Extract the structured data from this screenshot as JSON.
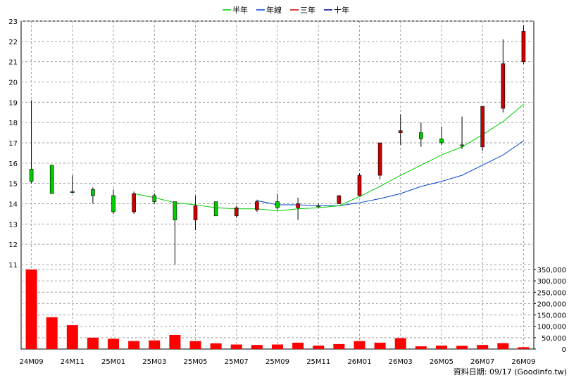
{
  "chart_data": {
    "type": "candlestick",
    "legend": [
      {
        "label": "半年",
        "color": "#00cc00"
      },
      {
        "label": "年線",
        "color": "#0044cc"
      },
      {
        "label": "三年",
        "color": "#cc0000"
      },
      {
        "label": "十年",
        "color": "#000080"
      }
    ],
    "months": [
      "24M09",
      "24M10",
      "24M11",
      "24M12",
      "25M01",
      "25M02",
      "25M03",
      "25M04",
      "25M05",
      "25M06",
      "25M07",
      "25M08",
      "25M09",
      "25M10",
      "25M11",
      "25M12",
      "26M01",
      "26M02",
      "26M03",
      "26M04",
      "26M05",
      "26M06",
      "26M07",
      "26M08",
      "26M09"
    ],
    "x_tick_labels": [
      "24M09",
      "24M11",
      "25M01",
      "25M03",
      "25M05",
      "25M07",
      "25M09",
      "25M11",
      "26M01",
      "26M03",
      "26M05",
      "26M07",
      "26M09"
    ],
    "candles": [
      {
        "open": 15.1,
        "high": 19.1,
        "low": 15.0,
        "close": 15.7
      },
      {
        "open": 14.5,
        "high": 15.9,
        "low": 14.5,
        "close": 15.9
      },
      {
        "open": 14.6,
        "high": 15.4,
        "low": 14.5,
        "close": 14.6
      },
      {
        "open": 14.4,
        "high": 14.8,
        "low": 14.0,
        "close": 14.7
      },
      {
        "open": 13.6,
        "high": 14.7,
        "low": 13.5,
        "close": 14.4
      },
      {
        "open": 14.5,
        "high": 14.6,
        "low": 13.5,
        "close": 13.6
      },
      {
        "open": 14.1,
        "high": 14.5,
        "low": 14.0,
        "close": 14.4
      },
      {
        "open": 13.2,
        "high": 14.1,
        "low": 11.0,
        "close": 14.1
      },
      {
        "open": 13.9,
        "high": 14.4,
        "low": 12.7,
        "close": 13.2
      },
      {
        "open": 13.4,
        "high": 14.1,
        "low": 13.4,
        "close": 14.1
      },
      {
        "open": 13.8,
        "high": 13.9,
        "low": 13.3,
        "close": 13.4
      },
      {
        "open": 14.1,
        "high": 14.2,
        "low": 13.6,
        "close": 13.7
      },
      {
        "open": 13.8,
        "high": 14.5,
        "low": 13.7,
        "close": 14.1
      },
      {
        "open": 14.0,
        "high": 14.3,
        "low": 13.2,
        "close": 13.8
      },
      {
        "open": 13.9,
        "high": 14.0,
        "low": 13.8,
        "close": 13.9
      },
      {
        "open": 14.4,
        "high": 14.4,
        "low": 14.0,
        "close": 14.0
      },
      {
        "open": 15.4,
        "high": 15.5,
        "low": 14.4,
        "close": 14.4
      },
      {
        "open": 17.0,
        "high": 17.0,
        "low": 15.2,
        "close": 15.4
      },
      {
        "open": 17.6,
        "high": 18.4,
        "low": 16.9,
        "close": 17.5
      },
      {
        "open": 17.2,
        "high": 18.0,
        "low": 16.8,
        "close": 17.5
      },
      {
        "open": 17.0,
        "high": 17.8,
        "low": 16.9,
        "close": 17.2
      },
      {
        "open": 16.9,
        "high": 18.3,
        "low": 16.7,
        "close": 16.9
      },
      {
        "open": 18.8,
        "high": 18.8,
        "low": 16.6,
        "close": 16.8
      },
      {
        "open": 20.9,
        "high": 22.1,
        "low": 18.5,
        "close": 18.7
      },
      {
        "open": 22.5,
        "high": 22.8,
        "low": 20.9,
        "close": 21.0
      }
    ],
    "half_year_ma": [
      null,
      null,
      null,
      null,
      null,
      14.5,
      14.3,
      14.05,
      13.95,
      13.8,
      13.75,
      13.75,
      13.65,
      13.75,
      13.8,
      13.9,
      14.35,
      14.85,
      15.4,
      15.9,
      16.4,
      16.8,
      17.4,
      18.05,
      18.9
    ],
    "annual_ma": [
      null,
      null,
      null,
      null,
      null,
      null,
      null,
      null,
      null,
      null,
      null,
      14.15,
      13.95,
      13.95,
      13.9,
      13.9,
      14.05,
      14.25,
      14.5,
      14.85,
      15.1,
      15.4,
      15.9,
      16.4,
      17.1
    ],
    "volume": [
      350000,
      140000,
      105000,
      50000,
      45000,
      35000,
      38000,
      62000,
      35000,
      25000,
      20000,
      18000,
      20000,
      28000,
      15000,
      22000,
      35000,
      28000,
      48000,
      12000,
      15000,
      14000,
      18000,
      26000,
      8000
    ],
    "price_ylim": [
      11,
      23
    ],
    "price_ticks": [
      11,
      12,
      13,
      14,
      15,
      16,
      17,
      18,
      19,
      20,
      21,
      22,
      23
    ],
    "volume_ylim": [
      0,
      350000
    ],
    "volume_ticks": [
      "0",
      "50,000",
      "100,000",
      "150,000",
      "200,000",
      "250,000",
      "300,000",
      "350,000"
    ],
    "grid": true
  },
  "source_text": "資料日期: 09/17  (Goodinfo.tw)"
}
